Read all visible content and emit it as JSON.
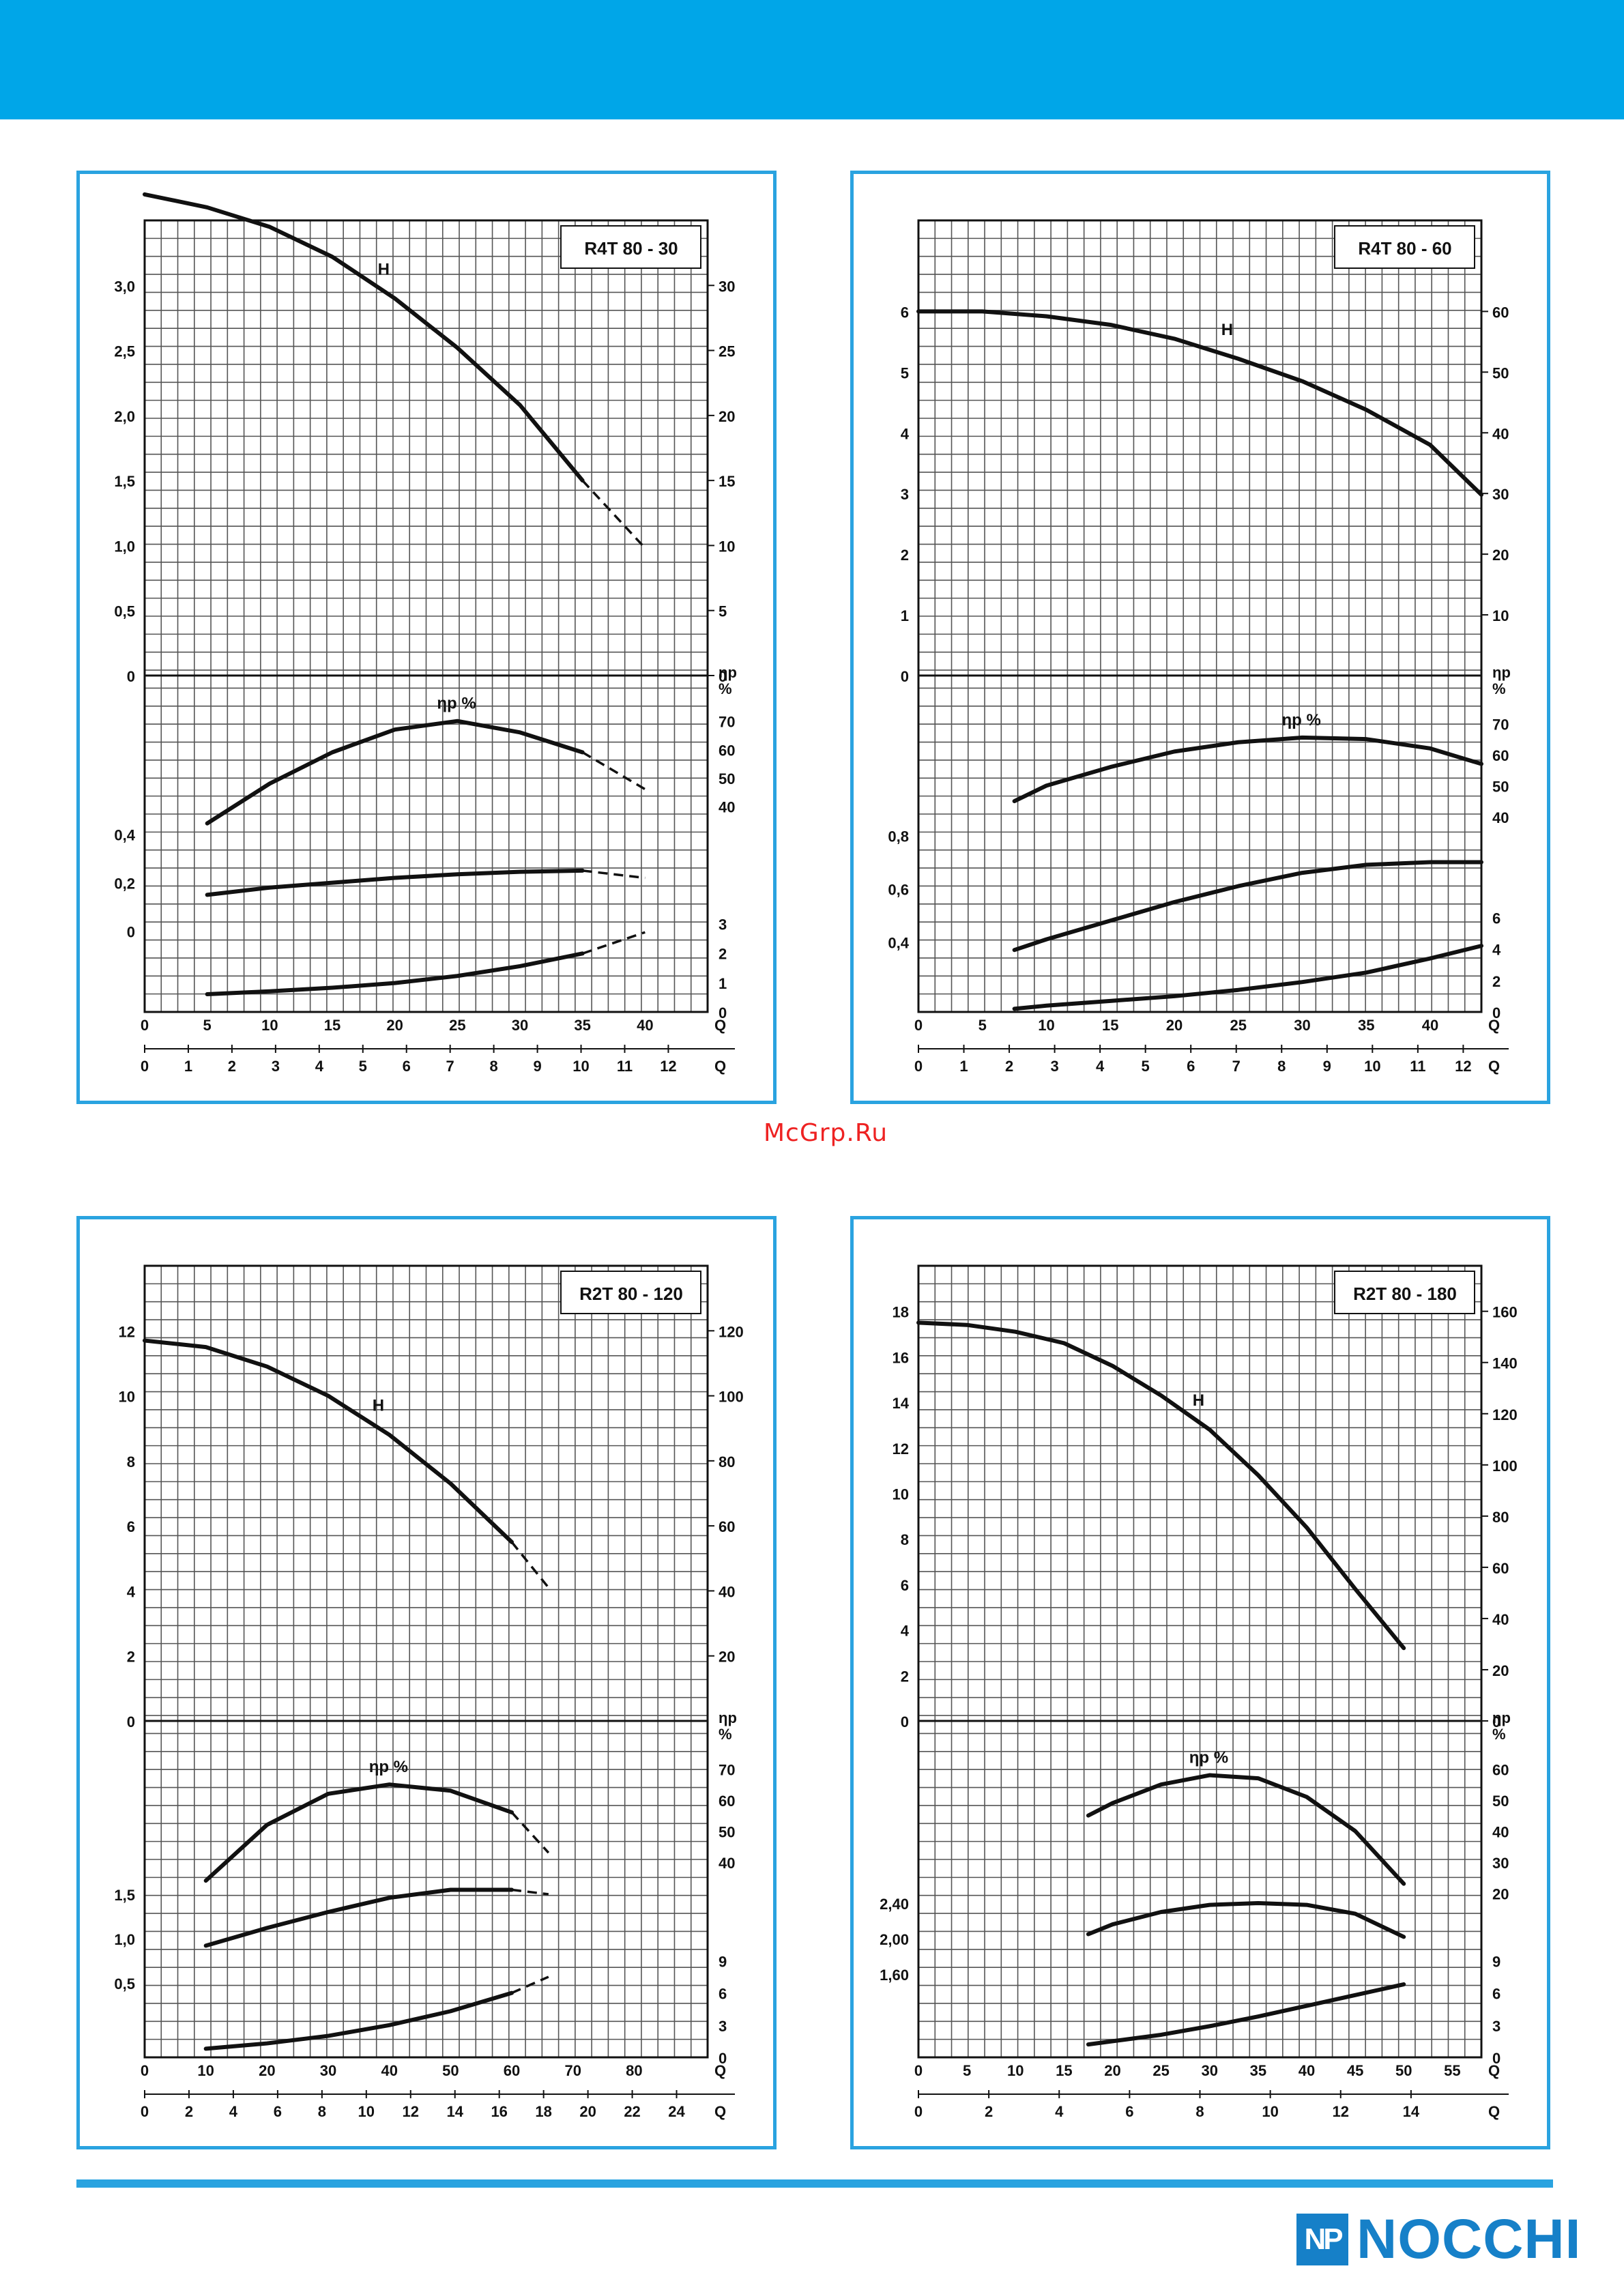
{
  "header": {
    "band_color": "#00a6e8"
  },
  "watermark": "McGrp.Ru",
  "brand": {
    "logo_mark": "NP",
    "logo_text": "NOCCHI",
    "color": "#1680c8"
  },
  "chart_data": [
    {
      "type": "line",
      "title": "R4T 80 - 30",
      "x_primary": {
        "label": "Q",
        "ticks": [
          "0",
          "5",
          "10",
          "15",
          "20",
          "25",
          "30",
          "35",
          "40"
        ],
        "range": [
          0,
          45
        ]
      },
      "x_secondary": {
        "label": "Q",
        "ticks": [
          "0",
          "1",
          "2",
          "3",
          "4",
          "5",
          "6",
          "7",
          "8",
          "9",
          "10",
          "11",
          "12"
        ],
        "range": [
          0,
          12.9
        ]
      },
      "head": {
        "left_ticks": [
          "0",
          "0,5",
          "1,0",
          "1,5",
          "2,0",
          "2,5",
          "3,0"
        ],
        "left_range": [
          0,
          3.5
        ],
        "right_ticks": [
          "0",
          "5",
          "10",
          "15",
          "20",
          "25",
          "30"
        ],
        "series": [
          {
            "name": "H",
            "x": [
              0,
              5,
              10,
              15,
              20,
              25,
              30,
              35,
              40
            ],
            "y": [
              3.7,
              3.6,
              3.45,
              3.22,
              2.9,
              2.52,
              2.08,
              1.5,
              0.98
            ],
            "solid_until": 35
          }
        ]
      },
      "efficiency": {
        "label": "ηp",
        "unit": "%",
        "right_ticks": [
          "40",
          "50",
          "60",
          "70"
        ],
        "range": [
          20,
          80
        ],
        "series": [
          {
            "name": "ηp %",
            "x": [
              5,
              10,
              15,
              20,
              25,
              30,
              35,
              40
            ],
            "y": [
              34,
              48,
              59,
              67,
              70,
              66,
              59,
              46
            ],
            "solid_until": 35
          }
        ]
      },
      "power": {
        "left_ticks": [
          "0",
          "0,2",
          "0,4"
        ],
        "left_range": [
          -0.1,
          0.45
        ],
        "series": [
          {
            "x": [
              5,
              10,
              15,
              20,
              25,
              30,
              35,
              40
            ],
            "y": [
              0.15,
              0.18,
              0.2,
              0.22,
              0.235,
              0.245,
              0.25,
              0.22
            ],
            "solid_until": 35
          }
        ]
      },
      "npsh": {
        "right_ticks": [
          "0",
          "1",
          "2",
          "3"
        ],
        "range": [
          0,
          4
        ],
        "series": [
          {
            "x": [
              5,
              10,
              15,
              20,
              25,
              30,
              35,
              40
            ],
            "y": [
              0.6,
              0.7,
              0.82,
              0.98,
              1.22,
              1.55,
              1.98,
              2.7
            ],
            "solid_until": 35
          }
        ]
      }
    },
    {
      "type": "line",
      "title": "R4T 80 - 60",
      "x_primary": {
        "label": "Q",
        "ticks": [
          "0",
          "5",
          "10",
          "15",
          "20",
          "25",
          "30",
          "35",
          "40"
        ],
        "range": [
          0,
          44
        ]
      },
      "x_secondary": {
        "label": "Q",
        "ticks": [
          "0",
          "1",
          "2",
          "3",
          "4",
          "5",
          "6",
          "7",
          "8",
          "9",
          "10",
          "11",
          "12"
        ],
        "range": [
          0,
          12.4
        ]
      },
      "head": {
        "left_ticks": [
          "0",
          "1",
          "2",
          "3",
          "4",
          "5",
          "6"
        ],
        "left_range": [
          0,
          7.5
        ],
        "right_ticks": [
          "10",
          "20",
          "30",
          "40",
          "50",
          "60"
        ],
        "series": [
          {
            "name": "H",
            "x": [
              0,
              5,
              10,
              15,
              20,
              25,
              30,
              35,
              40,
              44
            ],
            "y": [
              6.0,
              6.0,
              5.92,
              5.78,
              5.55,
              5.22,
              4.85,
              4.38,
              3.8,
              2.98
            ],
            "solid_until": 44
          }
        ]
      },
      "efficiency": {
        "label": "ηp",
        "unit": "%",
        "right_ticks": [
          "40",
          "50",
          "60",
          "70"
        ],
        "range": [
          25,
          80
        ],
        "series": [
          {
            "name": "ηp %",
            "x": [
              7.5,
              10,
              15,
              20,
              25,
              30,
              35,
              40,
              44
            ],
            "y": [
              45,
              50,
              56,
              61,
              64,
              65.5,
              65,
              62,
              57
            ],
            "solid_until": 44
          }
        ]
      },
      "power": {
        "left_ticks": [
          "0,4",
          "0,6",
          "0,8"
        ],
        "left_range": [
          0.35,
          0.85
        ],
        "series": [
          {
            "x": [
              7.5,
              10,
              15,
              20,
              25,
              30,
              35,
              40,
              44
            ],
            "y": [
              0.37,
              0.41,
              0.48,
              0.55,
              0.61,
              0.66,
              0.69,
              0.7,
              0.7
            ],
            "solid_until": 44
          }
        ]
      },
      "npsh": {
        "right_ticks": [
          "0",
          "2",
          "4",
          "6"
        ],
        "range": [
          0,
          7.5
        ],
        "series": [
          {
            "x": [
              7.5,
              10,
              15,
              20,
              25,
              30,
              35,
              40,
              44
            ],
            "y": [
              0.2,
              0.4,
              0.7,
              1.0,
              1.4,
              1.9,
              2.5,
              3.4,
              4.2
            ],
            "solid_until": 44
          }
        ]
      }
    },
    {
      "type": "line",
      "title": "R2T 80 - 120",
      "x_primary": {
        "label": "Q",
        "ticks": [
          "0",
          "10",
          "20",
          "30",
          "40",
          "50",
          "60",
          "70",
          "80"
        ],
        "range": [
          0,
          92
        ]
      },
      "x_secondary": {
        "label": "Q",
        "ticks": [
          "0",
          "2",
          "4",
          "6",
          "8",
          "10",
          "12",
          "14",
          "16",
          "18",
          "20",
          "22",
          "24"
        ],
        "range": [
          0,
          25.4
        ]
      },
      "head": {
        "left_ticks": [
          "0",
          "2",
          "4",
          "6",
          "8",
          "10",
          "12"
        ],
        "left_range": [
          0,
          14
        ],
        "right_ticks": [
          "20",
          "40",
          "60",
          "80",
          "100",
          "120"
        ],
        "series": [
          {
            "name": "H",
            "x": [
              0,
              10,
              20,
              30,
              40,
              50,
              60,
              66
            ],
            "y": [
              11.7,
              11.5,
              10.9,
              10.0,
              8.8,
              7.3,
              5.5,
              4.1
            ],
            "solid_until": 60
          }
        ]
      },
      "efficiency": {
        "label": "ηp",
        "unit": "%",
        "right_ticks": [
          "40",
          "50",
          "60",
          "70"
        ],
        "range": [
          25,
          80
        ],
        "series": [
          {
            "name": "ηp %",
            "x": [
              10,
              20,
              30,
              40,
              50,
              60,
              66
            ],
            "y": [
              34,
              52,
              62,
              65,
              63,
              56,
              43
            ],
            "solid_until": 60
          }
        ]
      },
      "power": {
        "left_ticks": [
          "0,5",
          "1,0",
          "1,5"
        ],
        "left_range": [
          0.3,
          1.8
        ],
        "series": [
          {
            "x": [
              10,
              20,
              30,
              40,
              50,
              60,
              66
            ],
            "y": [
              0.92,
              1.12,
              1.3,
              1.46,
              1.55,
              1.55,
              1.5
            ],
            "solid_until": 60
          }
        ]
      },
      "npsh": {
        "right_ticks": [
          "0",
          "3",
          "6",
          "9"
        ],
        "range": [
          0,
          11
        ],
        "series": [
          {
            "x": [
              10,
              20,
              30,
              40,
              50,
              60,
              66
            ],
            "y": [
              0.8,
              1.3,
              2.0,
              3.0,
              4.3,
              6.0,
              7.5
            ],
            "solid_until": 60
          }
        ]
      }
    },
    {
      "type": "line",
      "title": "R2T 80 - 180",
      "x_primary": {
        "label": "Q",
        "ticks": [
          "0",
          "5",
          "10",
          "15",
          "20",
          "25",
          "30",
          "35",
          "40",
          "45",
          "50",
          "55"
        ],
        "range": [
          0,
          58
        ]
      },
      "x_secondary": {
        "label": "Q",
        "ticks": [
          "0",
          "2",
          "4",
          "6",
          "8",
          "10",
          "12",
          "14"
        ],
        "range": [
          0,
          16
        ]
      },
      "head": {
        "left_ticks": [
          "0",
          "2",
          "4",
          "6",
          "8",
          "10",
          "12",
          "14",
          "16",
          "18"
        ],
        "left_range": [
          0,
          20
        ],
        "right_ticks": [
          "0",
          "20",
          "40",
          "60",
          "80",
          "100",
          "120",
          "140",
          "160"
        ],
        "series": [
          {
            "name": "H",
            "x": [
              0,
              5,
              10,
              15,
              20,
              25,
              30,
              35,
              40,
              45,
              50
            ],
            "y": [
              17.5,
              17.4,
              17.1,
              16.6,
              15.6,
              14.3,
              12.8,
              10.8,
              8.5,
              5.8,
              3.2
            ],
            "solid_until": 50
          }
        ]
      },
      "efficiency": {
        "label": "ηp",
        "unit": "%",
        "right_ticks": [
          "20",
          "30",
          "40",
          "50",
          "60"
        ],
        "range": [
          15,
          70
        ],
        "series": [
          {
            "name": "ηp %",
            "x": [
              17.5,
              20,
              25,
              30,
              35,
              40,
              45,
              50
            ],
            "y": [
              45,
              49,
              55,
              58,
              57,
              51,
              40,
              23
            ],
            "solid_until": 50
          }
        ]
      },
      "power": {
        "left_ticks": [
          "1,60",
          "2,00",
          "2,40"
        ],
        "left_range": [
          1.3,
          2.8
        ],
        "series": [
          {
            "x": [
              17.5,
              20,
              25,
              30,
              35,
              40,
              45,
              50
            ],
            "y": [
              2.05,
              2.16,
              2.3,
              2.38,
              2.4,
              2.38,
              2.28,
              2.02
            ],
            "solid_until": 50
          }
        ]
      },
      "npsh": {
        "right_ticks": [
          "0",
          "3",
          "6",
          "9"
        ],
        "range": [
          0,
          11
        ],
        "series": [
          {
            "x": [
              17.5,
              20,
              25,
              30,
              35,
              40,
              45,
              50
            ],
            "y": [
              1.2,
              1.5,
              2.1,
              2.9,
              3.8,
              4.8,
              5.8,
              6.8
            ],
            "solid_until": 50
          }
        ]
      }
    }
  ]
}
